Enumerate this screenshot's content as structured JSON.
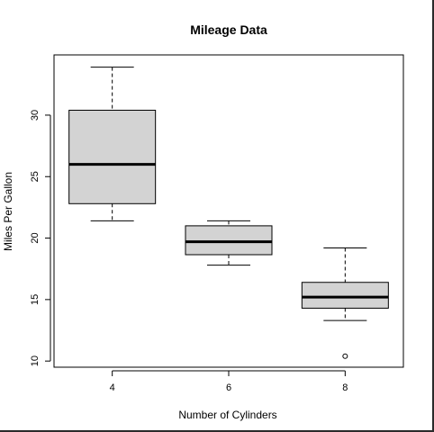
{
  "chart_data": {
    "type": "boxplot",
    "title": "Mileage Data",
    "xlabel": "Number of Cylinders",
    "ylabel": "Miles Per Gallon",
    "categories": [
      "4",
      "6",
      "8"
    ],
    "series": [
      {
        "whisker_low": 21.4,
        "q1": 22.8,
        "median": 26.0,
        "q3": 30.4,
        "whisker_high": 33.9,
        "outliers": []
      },
      {
        "whisker_low": 17.8,
        "q1": 18.65,
        "median": 19.7,
        "q3": 21.0,
        "whisker_high": 21.4,
        "outliers": []
      },
      {
        "whisker_low": 13.3,
        "q1": 14.3,
        "median": 15.2,
        "q3": 16.4,
        "whisker_high": 19.2,
        "outliers": [
          10.4
        ]
      }
    ],
    "yticks": [
      "10",
      "15",
      "20",
      "25",
      "30"
    ],
    "ylim": [
      9.5,
      34.9
    ],
    "box_fill": "#d3d3d3",
    "grid": false
  }
}
